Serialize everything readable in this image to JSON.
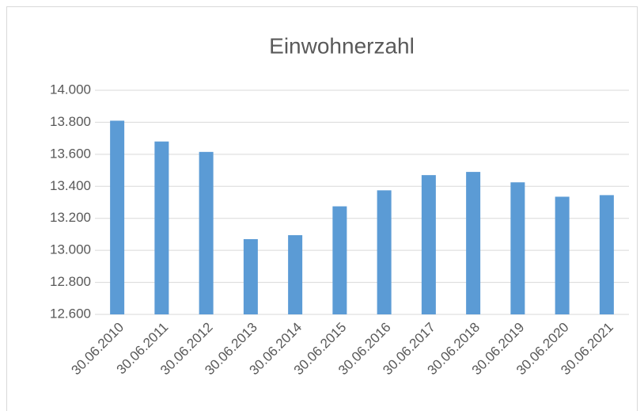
{
  "chart_data": {
    "type": "bar",
    "title": "Einwohnerzahl",
    "categories": [
      "30.06.2010",
      "30.06.2011",
      "30.06.2012",
      "30.06.2013",
      "30.06.2014",
      "30.06.2015",
      "30.06.2016",
      "30.06.2017",
      "30.06.2018",
      "30.06.2019",
      "30.06.2020",
      "30.06.2021"
    ],
    "values": [
      13810,
      13680,
      13615,
      13070,
      13095,
      13275,
      13375,
      13470,
      13490,
      13425,
      13335,
      13345
    ],
    "color": "#5b9bd5",
    "ylim": [
      12600,
      14000
    ],
    "yticks": [
      {
        "value": 12600,
        "label": "12.600"
      },
      {
        "value": 12800,
        "label": "12.800"
      },
      {
        "value": 13000,
        "label": "13.000"
      },
      {
        "value": 13200,
        "label": "13.200"
      },
      {
        "value": 13400,
        "label": "13.400"
      },
      {
        "value": 13600,
        "label": "13.600"
      },
      {
        "value": 13800,
        "label": "13.800"
      },
      {
        "value": 14000,
        "label": "14.000"
      }
    ],
    "grid": true
  }
}
